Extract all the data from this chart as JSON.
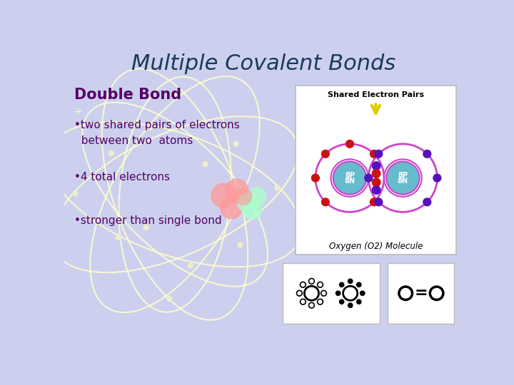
{
  "background_color": "#ccd0ee",
  "title": "Multiple Covalent Bonds",
  "title_color": "#1a3a5c",
  "title_fontsize": 22,
  "subtitle": "Double Bond",
  "subtitle_color": "#550066",
  "subtitle_fontsize": 15,
  "bullet_color": "#550066",
  "bullet_fontsize": 11,
  "bullets": [
    "•two shared pairs of electrons\n  between two  atoms",
    "•4 total electrons",
    "•stronger than single bond"
  ],
  "orbit_color": "#cc44cc",
  "nucleus_color": "#66bbcc",
  "electron_red": "#cc1111",
  "electron_purple": "#5511bb",
  "arrow_color": "#ddcc00",
  "white_orbit_color": "#ffffcc",
  "white_dot_color": "#eeeecc",
  "box_bg": "#ffffff",
  "box_edge": "#bbbbbb",
  "o_eq_o_color": "#000000",
  "o_eq_o_fontsize": 18,
  "blob_pink": "#ff9999",
  "blob_green": "#aaffcc"
}
